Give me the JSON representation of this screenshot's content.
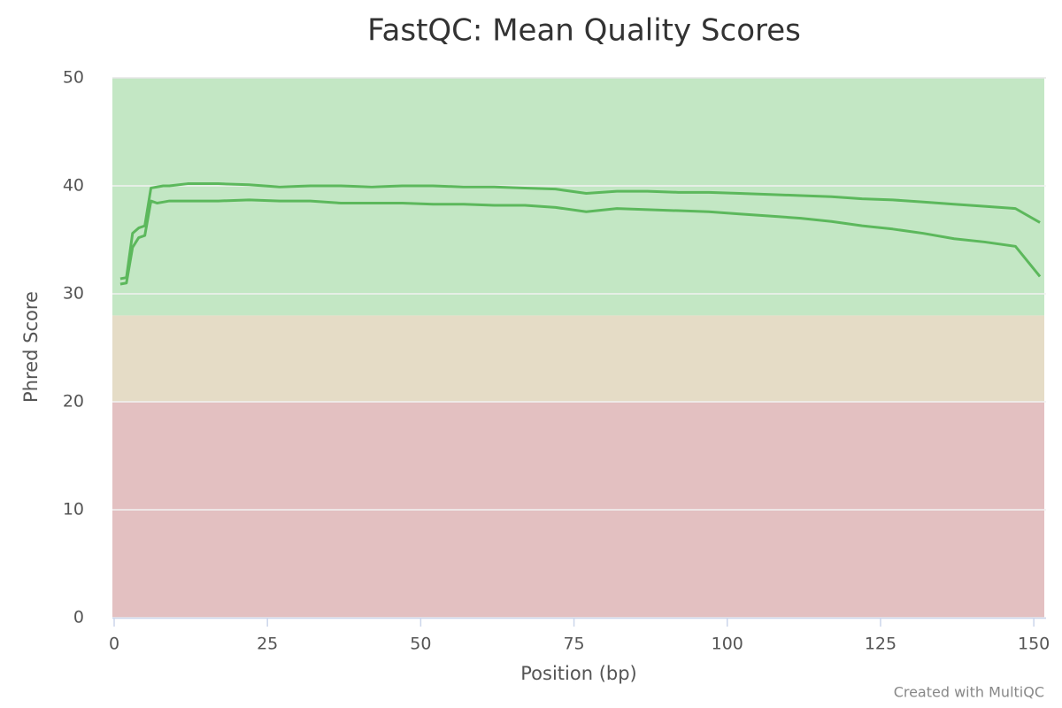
{
  "chart_data": {
    "type": "line",
    "title": "FastQC: Mean Quality Scores",
    "x_label": "Position (bp)",
    "y_label": "Phred Score",
    "credit": "Created with MultiQC",
    "x": [
      1,
      2,
      3,
      4,
      5,
      6,
      7,
      8,
      9,
      12,
      17,
      22,
      27,
      32,
      37,
      42,
      47,
      52,
      57,
      62,
      67,
      72,
      77,
      82,
      87,
      92,
      97,
      102,
      107,
      112,
      117,
      122,
      127,
      132,
      137,
      142,
      147,
      151
    ],
    "series": [
      {
        "color": "#5cb85c",
        "values": [
          31.4,
          31.5,
          35.6,
          36.1,
          36.3,
          39.8,
          39.9,
          40.0,
          40.0,
          40.2,
          40.2,
          40.1,
          39.9,
          40.0,
          40.0,
          39.9,
          40.0,
          40.0,
          39.9,
          39.9,
          39.8,
          39.7,
          39.3,
          39.5,
          39.5,
          39.4,
          39.4,
          39.3,
          39.2,
          39.1,
          39.0,
          38.8,
          38.7,
          38.5,
          38.3,
          38.1,
          37.9,
          36.6
        ]
      },
      {
        "color": "#5cb85c",
        "values": [
          30.9,
          31.0,
          34.3,
          35.2,
          35.4,
          38.6,
          38.4,
          38.5,
          38.6,
          38.6,
          38.6,
          38.7,
          38.6,
          38.6,
          38.4,
          38.4,
          38.4,
          38.3,
          38.3,
          38.2,
          38.2,
          38.0,
          37.6,
          37.9,
          37.8,
          37.7,
          37.6,
          37.4,
          37.2,
          37.0,
          36.7,
          36.3,
          36.0,
          35.6,
          35.1,
          34.8,
          34.4,
          31.6
        ]
      }
    ],
    "xlim": [
      0,
      152
    ],
    "ylim": [
      0,
      50
    ],
    "xticks": [
      0,
      25,
      50,
      75,
      100,
      125,
      150
    ],
    "yticks": [
      0,
      10,
      20,
      30,
      40,
      50
    ],
    "grid": true,
    "bands": [
      {
        "from": 0,
        "to": 20,
        "color": "#e3c0c1"
      },
      {
        "from": 20,
        "to": 28,
        "color": "#e5dcc6"
      },
      {
        "from": 28,
        "to": 50,
        "color": "#c3e7c4"
      }
    ]
  }
}
